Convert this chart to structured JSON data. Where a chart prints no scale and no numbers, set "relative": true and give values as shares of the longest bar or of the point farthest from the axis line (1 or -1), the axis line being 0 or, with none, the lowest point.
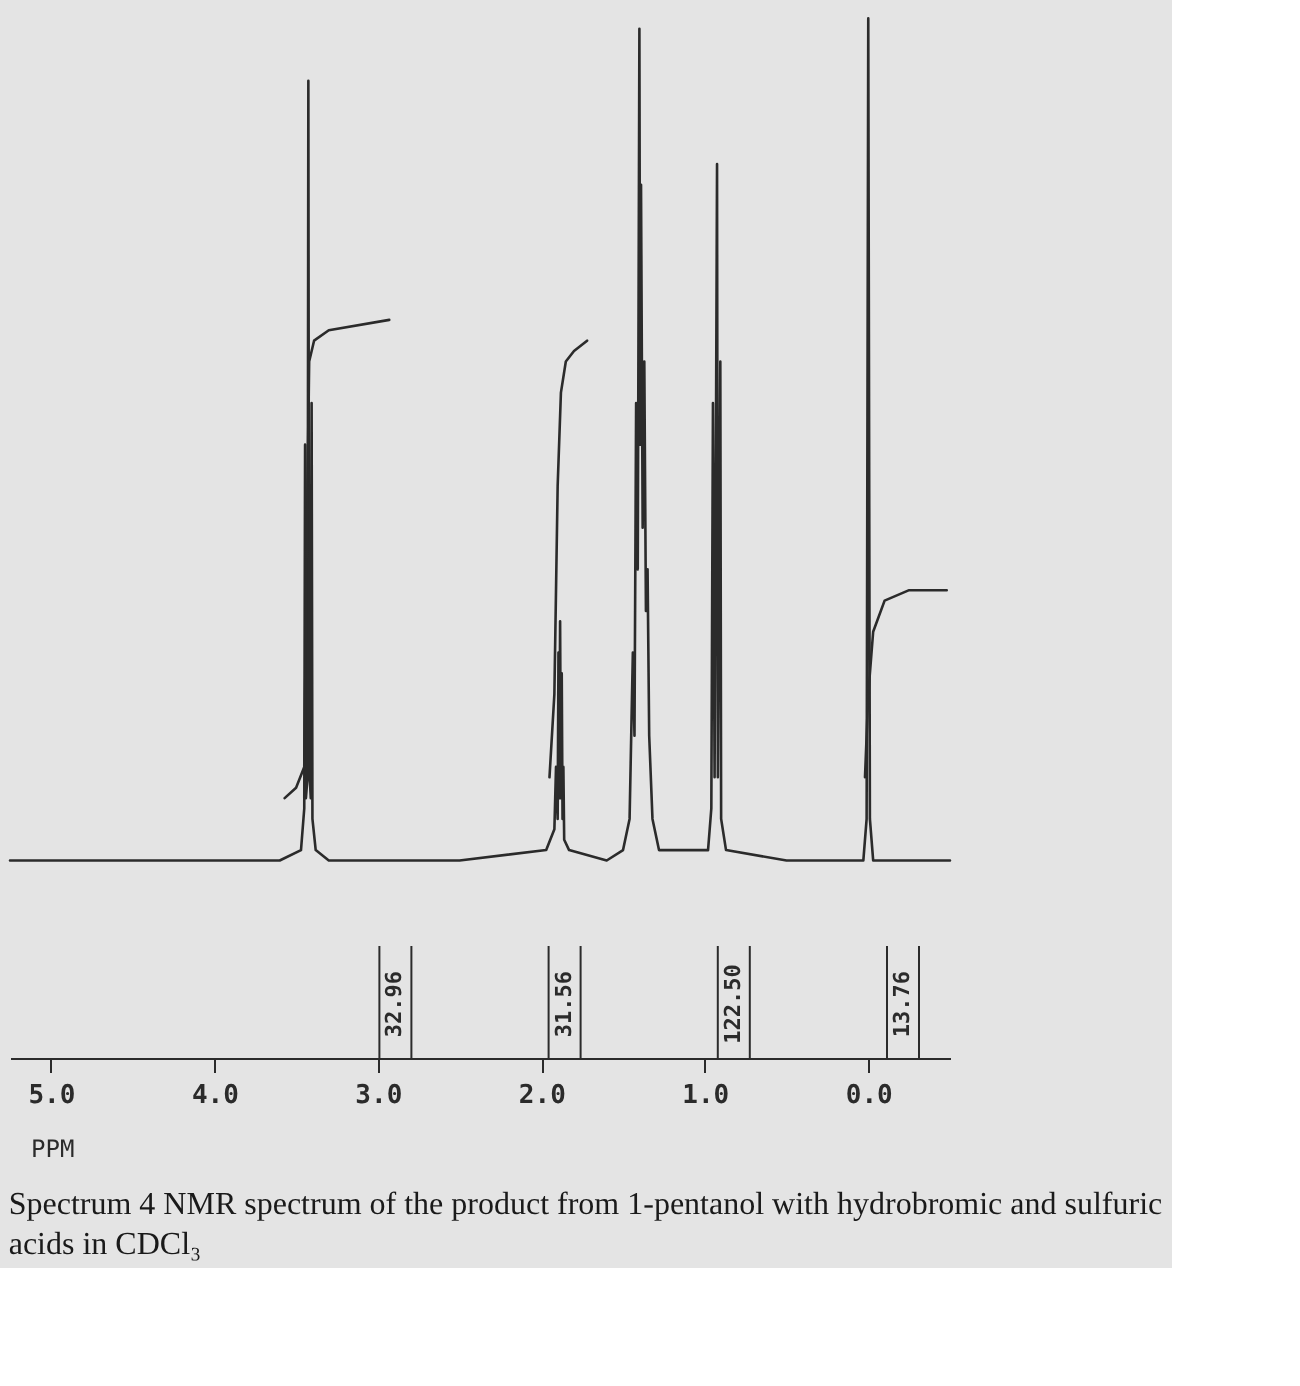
{
  "chart_data": {
    "type": "line",
    "relative": true,
    "xlabel": "PPM",
    "xlim": [
      5.25,
      -0.5
    ],
    "xticks": [
      {
        "value": 5,
        "label": "5.0"
      },
      {
        "value": 4,
        "label": "4.0"
      },
      {
        "value": 3,
        "label": "3.0"
      },
      {
        "value": 2,
        "label": "2.0"
      },
      {
        "value": 1,
        "label": "1.0"
      },
      {
        "value": 0,
        "label": "0.0"
      }
    ],
    "series": [
      {
        "color": "#2b2b2b",
        "x": [
          5.25,
          3.6,
          3.47,
          3.45,
          3.445,
          3.44,
          3.43,
          3.425,
          3.42,
          3.41,
          3.405,
          3.4,
          3.38,
          3.3,
          2.5,
          1.97,
          1.92,
          1.91,
          1.9,
          1.895,
          1.89,
          1.885,
          1.88,
          1.875,
          1.87,
          1.865,
          1.86,
          1.83,
          1.6,
          1.5,
          1.46,
          1.44,
          1.43,
          1.42,
          1.41,
          1.4,
          1.395,
          1.39,
          1.38,
          1.37,
          1.36,
          1.35,
          1.34,
          1.32,
          1.28,
          1.1,
          0.98,
          0.96,
          0.95,
          0.94,
          0.925,
          0.92,
          0.905,
          0.9,
          0.87,
          0.5,
          0.03,
          0.01,
          0.0,
          -0.01,
          -0.03,
          -0.5
        ],
        "values": [
          0.19,
          0.19,
          0.2,
          0.24,
          0.59,
          0.25,
          0.27,
          0.94,
          0.28,
          0.25,
          0.63,
          0.23,
          0.2,
          0.19,
          0.19,
          0.2,
          0.22,
          0.28,
          0.23,
          0.39,
          0.25,
          0.42,
          0.25,
          0.37,
          0.23,
          0.28,
          0.21,
          0.2,
          0.19,
          0.2,
          0.23,
          0.39,
          0.31,
          0.63,
          0.47,
          0.99,
          0.59,
          0.84,
          0.51,
          0.67,
          0.43,
          0.47,
          0.31,
          0.23,
          0.2,
          0.2,
          0.2,
          0.24,
          0.63,
          0.27,
          0.86,
          0.27,
          0.67,
          0.23,
          0.2,
          0.19,
          0.19,
          0.23,
          1.0,
          0.23,
          0.19,
          0.19
        ]
      },
      {
        "color": "#2b2b2b",
        "x": [
          3.57,
          3.5,
          3.45,
          3.43,
          3.42,
          3.39,
          3.3,
          2.93
        ],
        "values": [
          0.25,
          0.26,
          0.28,
          0.55,
          0.67,
          0.69,
          0.7,
          0.71
        ]
      },
      {
        "color": "#2b2b2b",
        "x": [
          1.95,
          1.92,
          1.9,
          1.88,
          1.85,
          1.8,
          1.72
        ],
        "values": [
          0.27,
          0.35,
          0.55,
          0.64,
          0.67,
          0.68,
          0.69
        ]
      },
      {
        "color": "#2b2b2b",
        "x": [
          0.02,
          0.0,
          -0.03,
          -0.1,
          -0.25,
          -0.48
        ],
        "values": [
          0.27,
          0.35,
          0.41,
          0.44,
          0.45,
          0.45
        ]
      }
    ],
    "annotations": [
      "32.96",
      "31.56",
      "122.50",
      "13.76",
      "Spectrum 4 NMR spectrum of the product from 1-pentanol with hydrobromic and sulfuric acids in CDCl₃"
    ]
  }
}
